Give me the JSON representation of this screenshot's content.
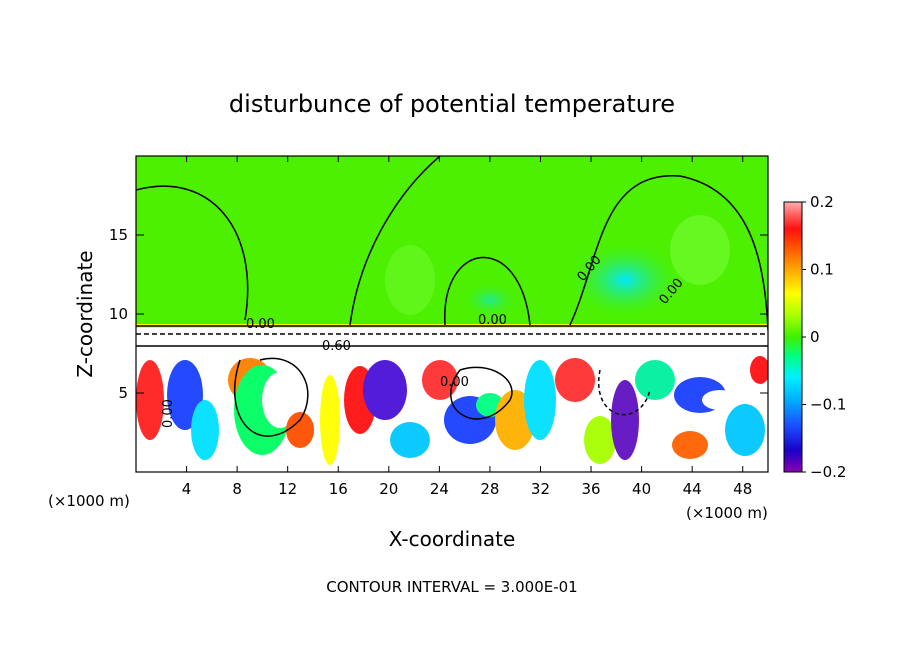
{
  "chart_data": {
    "type": "heatmap",
    "title": "disturbunce of potential temperature",
    "xlabel": "X-coordinate",
    "ylabel": "Z-coordinate",
    "x_unit": "(×1000 m)",
    "x_unit_right": "(×1000 m)",
    "xlim": [
      0,
      50
    ],
    "ylim": [
      0,
      20
    ],
    "x_ticks": [
      4,
      8,
      12,
      16,
      20,
      24,
      28,
      32,
      36,
      40,
      44,
      48
    ],
    "y_ticks": [
      5,
      10,
      15
    ],
    "colorbar": {
      "range": [
        -0.2,
        0.2
      ],
      "tick_values": [
        0.2,
        0.1,
        0,
        -0.1,
        -0.2
      ],
      "tick_labels": [
        "0.2",
        "0.1",
        "0",
        "−0.1",
        "−0.2"
      ],
      "colors": [
        "#8b00b0",
        "#1a00c8",
        "#1c4cff",
        "#00a8ff",
        "#00f0ff",
        "#00ff80",
        "#3ff000",
        "#a8ff00",
        "#ffff00",
        "#ffb000",
        "#ff6000",
        "#ff1010",
        "#ff5a5a",
        "#ffb0b0"
      ]
    },
    "contour_labels": [
      "0.00",
      "0.00",
      "0.00",
      "0.00",
      "0.00",
      "0.60",
      "0.00"
    ],
    "footer": "CONTOUR INTERVAL = 3.000E-01"
  }
}
